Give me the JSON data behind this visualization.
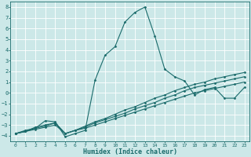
{
  "bg_color": "#cce8e8",
  "grid_color": "#b0d8d8",
  "line_color": "#1a6b6b",
  "xlabel": "Humidex (Indice chaleur)",
  "xlim": [
    -0.5,
    23.5
  ],
  "ylim": [
    -4.5,
    8.5
  ],
  "yticks": [
    -4,
    -3,
    -2,
    -1,
    0,
    1,
    2,
    3,
    4,
    5,
    6,
    7,
    8
  ],
  "xticks": [
    0,
    1,
    2,
    3,
    4,
    5,
    6,
    7,
    8,
    9,
    10,
    11,
    12,
    13,
    14,
    15,
    16,
    17,
    18,
    19,
    20,
    21,
    22,
    23
  ],
  "series": [
    {
      "x": [
        0,
        1,
        2,
        3,
        4,
        5,
        6,
        7,
        8,
        9,
        10,
        11,
        12,
        13,
        14,
        15,
        16,
        17,
        18,
        19,
        20,
        21,
        22,
        23
      ],
      "y": [
        -3.8,
        -3.5,
        -3.3,
        -2.6,
        -2.7,
        -4.1,
        -3.8,
        -3.5,
        1.2,
        3.5,
        4.3,
        6.6,
        7.5,
        8.0,
        5.3,
        2.2,
        1.5,
        1.1,
        -0.2,
        0.3,
        0.5,
        -0.5,
        -0.5,
        0.5
      ]
    },
    {
      "x": [
        0,
        1,
        2,
        3,
        4,
        5,
        6,
        7,
        8,
        9,
        10,
        11,
        12,
        13,
        14,
        15,
        16,
        17,
        18,
        19,
        20,
        21,
        22,
        23
      ],
      "y": [
        -3.8,
        -3.6,
        -3.4,
        -3.2,
        -3.0,
        -3.8,
        -3.5,
        -3.3,
        -3.0,
        -2.7,
        -2.4,
        -2.1,
        -1.8,
        -1.5,
        -1.2,
        -0.9,
        -0.6,
        -0.3,
        0.0,
        0.2,
        0.4,
        0.6,
        0.8,
        1.0
      ]
    },
    {
      "x": [
        0,
        1,
        2,
        3,
        4,
        5,
        6,
        7,
        8,
        9,
        10,
        11,
        12,
        13,
        14,
        15,
        16,
        17,
        18,
        19,
        20,
        21,
        22,
        23
      ],
      "y": [
        -3.8,
        -3.6,
        -3.3,
        -3.1,
        -2.8,
        -3.8,
        -3.5,
        -3.2,
        -2.8,
        -2.5,
        -2.2,
        -1.9,
        -1.5,
        -1.2,
        -0.9,
        -0.5,
        -0.2,
        0.2,
        0.5,
        0.7,
        0.9,
        1.1,
        1.3,
        1.5
      ]
    },
    {
      "x": [
        0,
        1,
        2,
        3,
        4,
        5,
        6,
        7,
        8,
        9,
        10,
        11,
        12,
        13,
        14,
        15,
        16,
        17,
        18,
        19,
        20,
        21,
        22,
        23
      ],
      "y": [
        -3.8,
        -3.6,
        -3.2,
        -3.0,
        -2.8,
        -3.8,
        -3.5,
        -3.1,
        -2.7,
        -2.4,
        -2.0,
        -1.6,
        -1.3,
        -0.9,
        -0.5,
        -0.2,
        0.2,
        0.5,
        0.8,
        1.0,
        1.3,
        1.5,
        1.7,
        1.9
      ]
    }
  ]
}
